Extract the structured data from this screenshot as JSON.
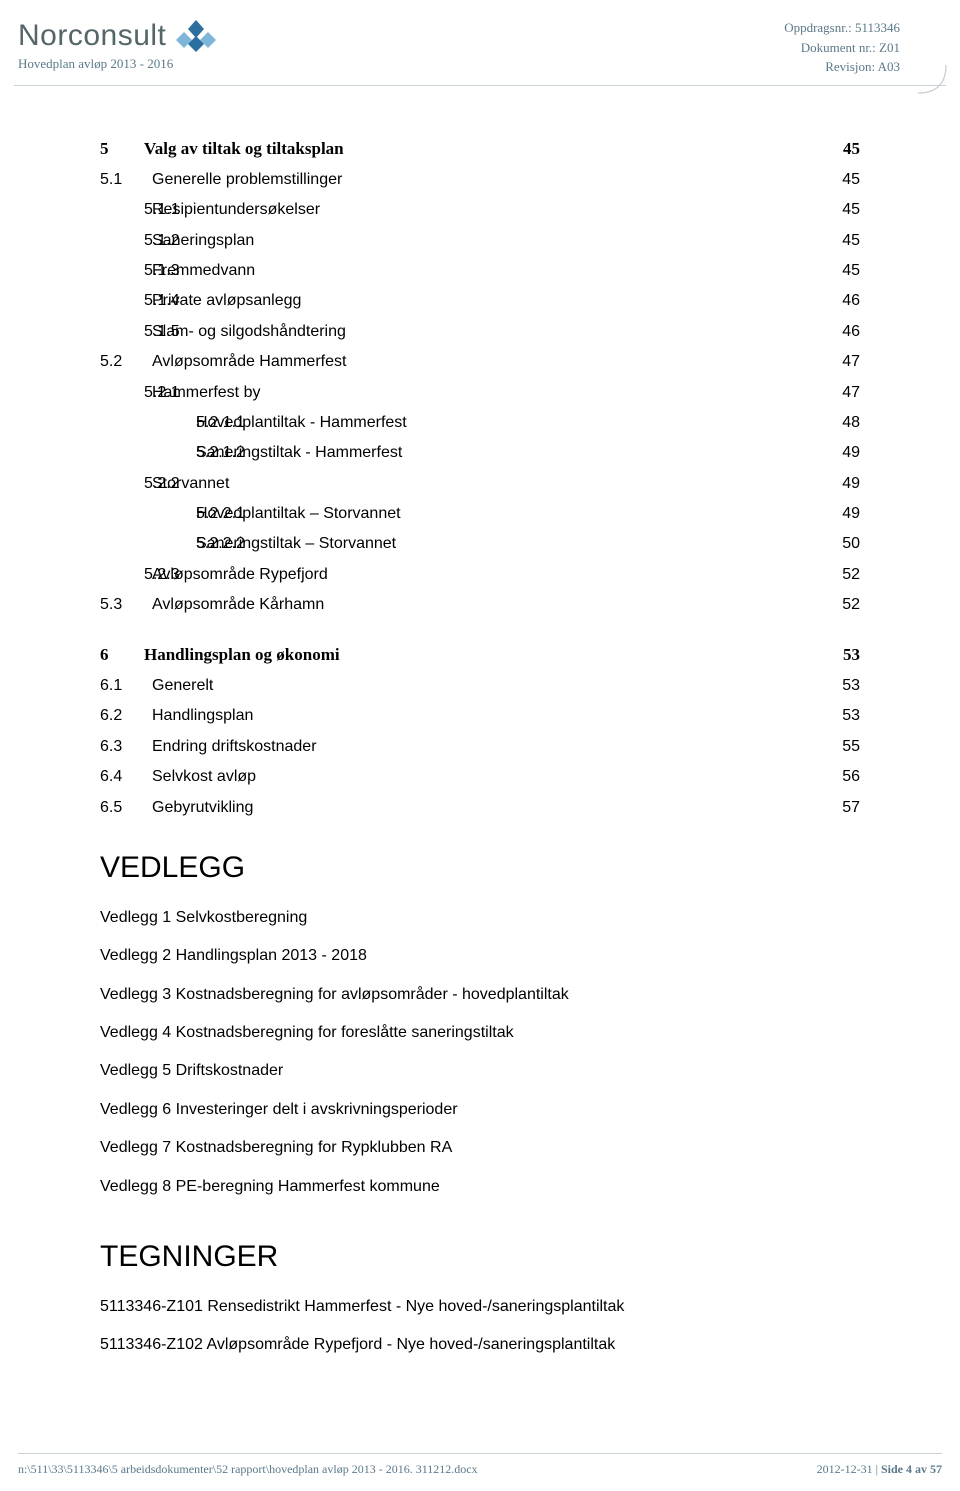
{
  "header": {
    "logo_text": "Norconsult",
    "doc_title": "Hovedplan avløp 2013 - 2016",
    "meta": {
      "oppdragsnr_label": "Oppdragsnr.:",
      "oppdragsnr_value": "5113346",
      "dokument_label": "Dokument nr.:",
      "dokument_value": "Z01",
      "revisjon_label": "Revisjon:",
      "revisjon_value": "A03"
    },
    "logo_color_dark": "#2b6f9e",
    "logo_color_light": "#7db6d8",
    "rule_color": "#c7d2d6",
    "meta_text_color": "#5a798a"
  },
  "toc": {
    "sections": [
      {
        "num": "5",
        "title": "Valg av tiltak og tiltaksplan",
        "page": "45",
        "items": [
          {
            "level": 1,
            "num": "5.1",
            "title": "Generelle problemstillinger",
            "page": "45"
          },
          {
            "level": 2,
            "num": "5.1.1",
            "title": "Resipientundersøkelser",
            "page": "45"
          },
          {
            "level": 2,
            "num": "5.1.2",
            "title": "Saneringsplan",
            "page": "45"
          },
          {
            "level": 2,
            "num": "5.1.3",
            "title": "Fremmedvann",
            "page": "45"
          },
          {
            "level": 2,
            "num": "5.1.4",
            "title": "Private avløpsanlegg",
            "page": "46"
          },
          {
            "level": 2,
            "num": "5.1.5",
            "title": "Slam- og silgodshåndtering",
            "page": "46"
          },
          {
            "level": 1,
            "num": "5.2",
            "title": "Avløpsområde Hammerfest",
            "page": "47"
          },
          {
            "level": 2,
            "num": "5.2.1",
            "title": "Hammerfest by",
            "page": "47"
          },
          {
            "level": 3,
            "num": "5.2.1.1",
            "title": "Hovedplantiltak - Hammerfest",
            "page": "48"
          },
          {
            "level": 3,
            "num": "5.2.1.2",
            "title": "Saneringstiltak - Hammerfest",
            "page": "49"
          },
          {
            "level": 2,
            "num": "5.2.2",
            "title": "Storvannet",
            "page": "49"
          },
          {
            "level": 3,
            "num": "5.2.2.1",
            "title": "Hovedplantiltak – Storvannet",
            "page": "49"
          },
          {
            "level": 3,
            "num": "5.2.2.2",
            "title": "Saneringstiltak – Storvannet",
            "page": "50"
          },
          {
            "level": 2,
            "num": "5.2.3",
            "title": "Avløpsområde Rypefjord",
            "page": "52"
          },
          {
            "level": 1,
            "num": "5.3",
            "title": "Avløpsområde Kårhamn",
            "page": "52"
          }
        ]
      },
      {
        "num": "6",
        "title": "Handlingsplan og økonomi",
        "page": "53",
        "items": [
          {
            "level": 1,
            "num": "6.1",
            "title": "Generelt",
            "page": "53"
          },
          {
            "level": 1,
            "num": "6.2",
            "title": "Handlingsplan",
            "page": "53"
          },
          {
            "level": 1,
            "num": "6.3",
            "title": "Endring driftskostnader",
            "page": "55"
          },
          {
            "level": 1,
            "num": "6.4",
            "title": "Selvkost avløp",
            "page": "56"
          },
          {
            "level": 1,
            "num": "6.5",
            "title": "Gebyrutvikling",
            "page": "57"
          }
        ]
      }
    ]
  },
  "vedlegg": {
    "heading": "VEDLEGG",
    "items": [
      "Vedlegg 1  Selvkostberegning",
      "Vedlegg 2  Handlingsplan 2013 - 2018",
      "Vedlegg 3  Kostnadsberegning for avløpsområder - hovedplantiltak",
      "Vedlegg 4  Kostnadsberegning for foreslåtte saneringstiltak",
      "Vedlegg 5  Driftskostnader",
      "Vedlegg 6  Investeringer delt i avskrivningsperioder",
      "Vedlegg 7  Kostnadsberegning for Rypklubben RA",
      "Vedlegg 8  PE-beregning Hammerfest kommune"
    ]
  },
  "tegninger": {
    "heading": "TEGNINGER",
    "items": [
      "5113346-Z101 Rensedistrikt Hammerfest - Nye hoved-/saneringsplantiltak",
      "5113346-Z102 Avløpsområde Rypefjord - Nye hoved-/saneringsplantiltak"
    ]
  },
  "footer": {
    "left": "n:\\511\\33\\5113346\\5 arbeidsdokumenter\\52 rapport\\hovedplan avløp 2013 - 2016. 311212.docx",
    "right_date": "2012-12-31",
    "right_sep": " | ",
    "right_page": "Side 4 av 57"
  }
}
